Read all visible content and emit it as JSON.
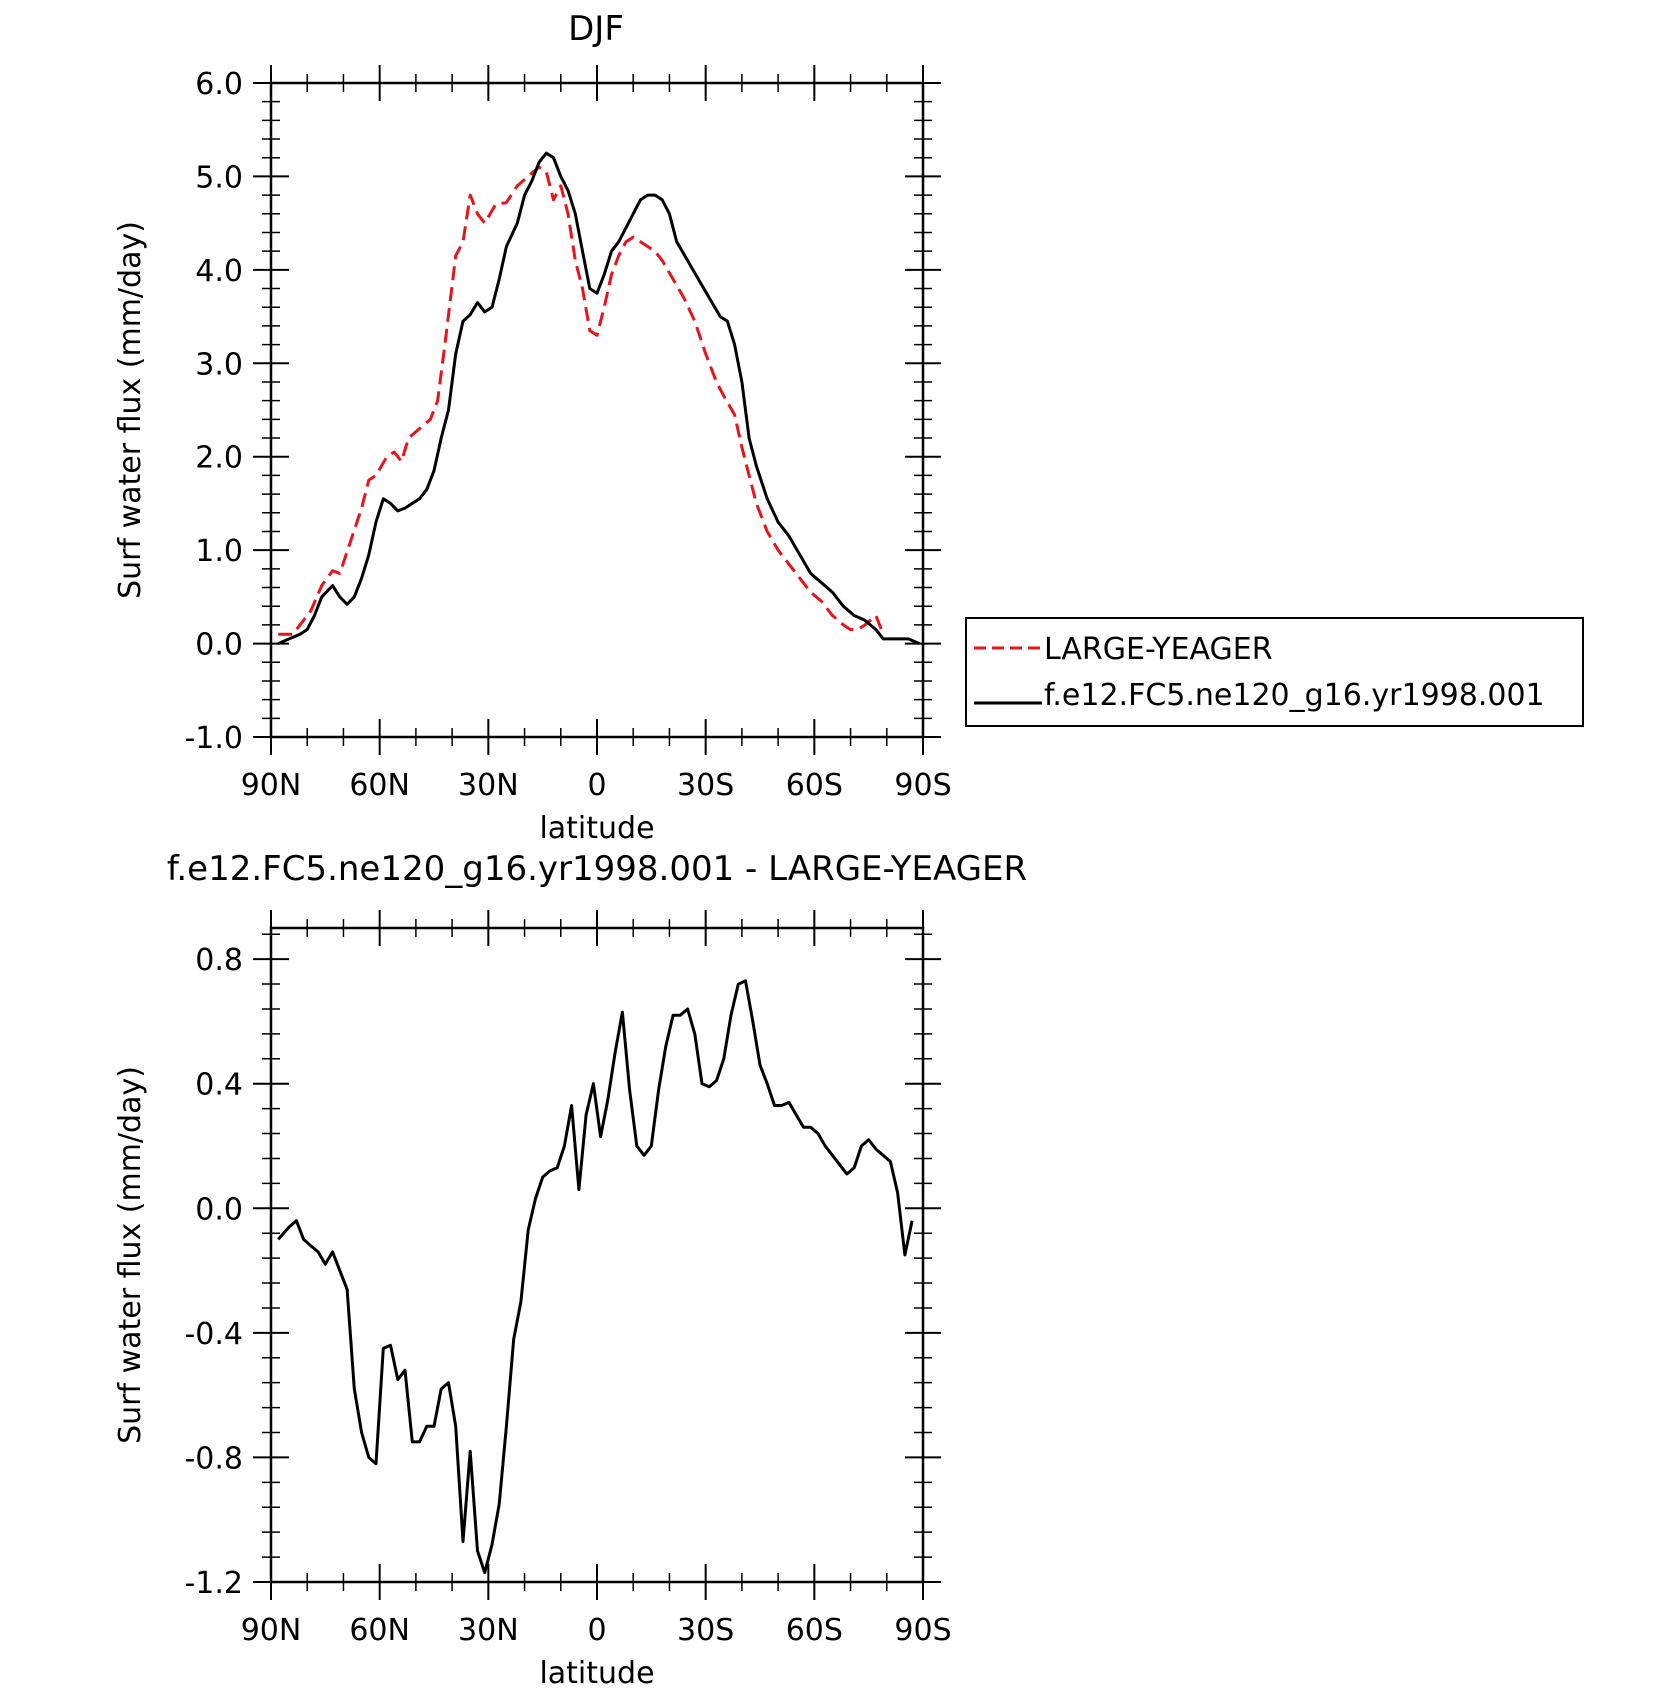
{
  "colors": {
    "obs": "#e8141c",
    "model": "#000000",
    "axis": "#000000"
  },
  "chart_data": [
    {
      "type": "line",
      "title": "DJF",
      "xlabel": "latitude",
      "ylabel": "Surf water flux (mm/day)",
      "xlim": [
        -90,
        90
      ],
      "ylim": [
        -1.0,
        6.0
      ],
      "x_ticks": [
        -90,
        -60,
        -30,
        0,
        30,
        60,
        90
      ],
      "x_tick_labels": [
        "90N",
        "60N",
        "30N",
        "0",
        "30S",
        "60S",
        "90S"
      ],
      "y_ticks": [
        -1,
        0,
        1,
        2,
        3,
        4,
        5,
        6
      ],
      "y_tick_labels": [
        "-1.0",
        "0.0",
        "1.0",
        "2.0",
        "3.0",
        "4.0",
        "5.0",
        "6.0"
      ],
      "legend": {
        "placement": "right",
        "entries": [
          {
            "label": "LARGE-YEAGER",
            "style": "dashed",
            "color": "#e8141c"
          },
          {
            "label": "f.e12.FC5.ne120_g16.yr1998.001",
            "style": "solid",
            "color": "#000000"
          }
        ]
      },
      "series": [
        {
          "name": "LARGE-YEAGER",
          "style": "dashed",
          "color": "#e8141c",
          "points": [
            [
              -88,
              0.1
            ],
            [
              -84,
              0.1
            ],
            [
              -82,
              0.2
            ],
            [
              -79,
              0.35
            ],
            [
              -76,
              0.62
            ],
            [
              -73,
              0.78
            ],
            [
              -71,
              0.75
            ],
            [
              -68,
              1.1
            ],
            [
              -65,
              1.45
            ],
            [
              -63,
              1.75
            ],
            [
              -61,
              1.8
            ],
            [
              -58,
              2.0
            ],
            [
              -56,
              2.05
            ],
            [
              -54,
              1.95
            ],
            [
              -52,
              2.2
            ],
            [
              -49,
              2.3
            ],
            [
              -46,
              2.4
            ],
            [
              -44,
              2.6
            ],
            [
              -42,
              3.2
            ],
            [
              -39,
              4.15
            ],
            [
              -37,
              4.3
            ],
            [
              -35,
              4.8
            ],
            [
              -33,
              4.6
            ],
            [
              -31,
              4.5
            ],
            [
              -28,
              4.7
            ],
            [
              -25,
              4.72
            ],
            [
              -22,
              4.9
            ],
            [
              -19,
              5.0
            ],
            [
              -16,
              5.1
            ],
            [
              -14,
              5.05
            ],
            [
              -12,
              4.75
            ],
            [
              -10,
              4.9
            ],
            [
              -8,
              4.6
            ],
            [
              -6,
              4.1
            ],
            [
              -4,
              3.8
            ],
            [
              -2,
              3.35
            ],
            [
              0,
              3.3
            ],
            [
              2,
              3.6
            ],
            [
              4,
              3.95
            ],
            [
              6,
              4.15
            ],
            [
              8,
              4.3
            ],
            [
              10,
              4.35
            ],
            [
              12,
              4.3
            ],
            [
              14,
              4.25
            ],
            [
              16,
              4.2
            ],
            [
              18,
              4.1
            ],
            [
              21,
              3.9
            ],
            [
              24,
              3.7
            ],
            [
              27,
              3.45
            ],
            [
              30,
              3.1
            ],
            [
              33,
              2.8
            ],
            [
              35,
              2.65
            ],
            [
              38,
              2.45
            ],
            [
              40,
              2.1
            ],
            [
              42,
              1.8
            ],
            [
              44,
              1.5
            ],
            [
              47,
              1.2
            ],
            [
              50,
              1.0
            ],
            [
              53,
              0.85
            ],
            [
              56,
              0.7
            ],
            [
              59,
              0.55
            ],
            [
              62,
              0.45
            ],
            [
              65,
              0.3
            ],
            [
              68,
              0.2
            ],
            [
              70,
              0.15
            ],
            [
              72,
              0.15
            ],
            [
              74,
              0.2
            ],
            [
              77,
              0.3
            ],
            [
              79,
              0.1
            ]
          ]
        },
        {
          "name": "f.e12.FC5.ne120_g16.yr1998.001",
          "style": "solid",
          "color": "#000000",
          "points": [
            [
              -88,
              0.0
            ],
            [
              -85,
              0.05
            ],
            [
              -82,
              0.1
            ],
            [
              -80,
              0.15
            ],
            [
              -78,
              0.3
            ],
            [
              -76,
              0.5
            ],
            [
              -73,
              0.62
            ],
            [
              -71,
              0.5
            ],
            [
              -69,
              0.42
            ],
            [
              -67,
              0.5
            ],
            [
              -65,
              0.7
            ],
            [
              -63,
              0.95
            ],
            [
              -61,
              1.3
            ],
            [
              -59,
              1.55
            ],
            [
              -57,
              1.5
            ],
            [
              -55,
              1.42
            ],
            [
              -53,
              1.45
            ],
            [
              -51,
              1.5
            ],
            [
              -49,
              1.55
            ],
            [
              -47,
              1.65
            ],
            [
              -45,
              1.85
            ],
            [
              -43,
              2.2
            ],
            [
              -41,
              2.5
            ],
            [
              -39,
              3.1
            ],
            [
              -37,
              3.45
            ],
            [
              -35,
              3.52
            ],
            [
              -33,
              3.65
            ],
            [
              -31,
              3.55
            ],
            [
              -29,
              3.6
            ],
            [
              -27,
              3.9
            ],
            [
              -25,
              4.25
            ],
            [
              -22,
              4.5
            ],
            [
              -20,
              4.8
            ],
            [
              -18,
              4.95
            ],
            [
              -16,
              5.15
            ],
            [
              -14,
              5.25
            ],
            [
              -12,
              5.2
            ],
            [
              -10,
              5.0
            ],
            [
              -8,
              4.85
            ],
            [
              -6,
              4.6
            ],
            [
              -4,
              4.2
            ],
            [
              -2,
              3.8
            ],
            [
              0,
              3.75
            ],
            [
              2,
              3.95
            ],
            [
              4,
              4.2
            ],
            [
              6,
              4.3
            ],
            [
              8,
              4.45
            ],
            [
              10,
              4.6
            ],
            [
              12,
              4.75
            ],
            [
              14,
              4.8
            ],
            [
              16,
              4.8
            ],
            [
              18,
              4.75
            ],
            [
              20,
              4.6
            ],
            [
              22,
              4.3
            ],
            [
              25,
              4.1
            ],
            [
              28,
              3.9
            ],
            [
              31,
              3.7
            ],
            [
              34,
              3.5
            ],
            [
              36,
              3.45
            ],
            [
              38,
              3.2
            ],
            [
              40,
              2.8
            ],
            [
              42,
              2.2
            ],
            [
              44,
              1.9
            ],
            [
              47,
              1.55
            ],
            [
              50,
              1.3
            ],
            [
              53,
              1.15
            ],
            [
              56,
              0.95
            ],
            [
              59,
              0.75
            ],
            [
              62,
              0.65
            ],
            [
              65,
              0.55
            ],
            [
              68,
              0.4
            ],
            [
              71,
              0.3
            ],
            [
              74,
              0.25
            ],
            [
              77,
              0.15
            ],
            [
              79,
              0.05
            ],
            [
              82,
              0.05
            ],
            [
              86,
              0.05
            ],
            [
              89,
              0.0
            ]
          ]
        }
      ]
    },
    {
      "type": "line",
      "title": "f.e12.FC5.ne120_g16.yr1998.001 - LARGE-YEAGER",
      "xlabel": "latitude",
      "ylabel": "Surf water flux (mm/day)",
      "xlim": [
        -90,
        90
      ],
      "ylim": [
        -1.2,
        0.9
      ],
      "x_ticks": [
        -90,
        -60,
        -30,
        0,
        30,
        60,
        90
      ],
      "x_tick_labels": [
        "90N",
        "60N",
        "30N",
        "0",
        "30S",
        "60S",
        "90S"
      ],
      "y_ticks": [
        -1.2,
        -0.8,
        -0.4,
        0.0,
        0.4,
        0.8
      ],
      "y_tick_labels": [
        "-1.2",
        "-0.8",
        "-0.4",
        "0.0",
        "0.4",
        "0.8"
      ],
      "series": [
        {
          "style": "solid",
          "color": "#000000",
          "points": [
            [
              -88,
              -0.1
            ],
            [
              -85,
              -0.06
            ],
            [
              -83,
              -0.04
            ],
            [
              -81,
              -0.1
            ],
            [
              -79,
              -0.12
            ],
            [
              -77,
              -0.14
            ],
            [
              -75,
              -0.18
            ],
            [
              -73,
              -0.14
            ],
            [
              -71,
              -0.2
            ],
            [
              -69,
              -0.26
            ],
            [
              -67,
              -0.58
            ],
            [
              -65,
              -0.72
            ],
            [
              -63,
              -0.8
            ],
            [
              -61,
              -0.82
            ],
            [
              -59,
              -0.45
            ],
            [
              -57,
              -0.44
            ],
            [
              -55,
              -0.55
            ],
            [
              -53,
              -0.52
            ],
            [
              -51,
              -0.75
            ],
            [
              -49,
              -0.75
            ],
            [
              -47,
              -0.7
            ],
            [
              -45,
              -0.7
            ],
            [
              -43,
              -0.58
            ],
            [
              -41,
              -0.56
            ],
            [
              -39,
              -0.7
            ],
            [
              -37,
              -1.07
            ],
            [
              -35,
              -0.78
            ],
            [
              -33,
              -1.1
            ],
            [
              -31,
              -1.17
            ],
            [
              -29,
              -1.08
            ],
            [
              -27,
              -0.95
            ],
            [
              -25,
              -0.7
            ],
            [
              -23,
              -0.42
            ],
            [
              -21,
              -0.3
            ],
            [
              -19,
              -0.07
            ],
            [
              -17,
              0.03
            ],
            [
              -15,
              0.1
            ],
            [
              -13,
              0.12
            ],
            [
              -11,
              0.13
            ],
            [
              -9,
              0.2
            ],
            [
              -7,
              0.33
            ],
            [
              -5,
              0.06
            ],
            [
              -3,
              0.3
            ],
            [
              -1,
              0.4
            ],
            [
              1,
              0.23
            ],
            [
              3,
              0.35
            ],
            [
              5,
              0.5
            ],
            [
              7,
              0.63
            ],
            [
              9,
              0.38
            ],
            [
              11,
              0.2
            ],
            [
              13,
              0.17
            ],
            [
              15,
              0.2
            ],
            [
              17,
              0.38
            ],
            [
              19,
              0.52
            ],
            [
              21,
              0.62
            ],
            [
              23,
              0.62
            ],
            [
              25,
              0.64
            ],
            [
              27,
              0.56
            ],
            [
              29,
              0.4
            ],
            [
              31,
              0.39
            ],
            [
              33,
              0.41
            ],
            [
              35,
              0.48
            ],
            [
              37,
              0.62
            ],
            [
              39,
              0.72
            ],
            [
              41,
              0.73
            ],
            [
              43,
              0.6
            ],
            [
              45,
              0.46
            ],
            [
              47,
              0.4
            ],
            [
              49,
              0.33
            ],
            [
              51,
              0.33
            ],
            [
              53,
              0.34
            ],
            [
              55,
              0.3
            ],
            [
              57,
              0.26
            ],
            [
              59,
              0.26
            ],
            [
              61,
              0.24
            ],
            [
              63,
              0.2
            ],
            [
              65,
              0.17
            ],
            [
              67,
              0.14
            ],
            [
              69,
              0.11
            ],
            [
              71,
              0.13
            ],
            [
              73,
              0.2
            ],
            [
              75,
              0.22
            ],
            [
              77,
              0.19
            ],
            [
              79,
              0.17
            ],
            [
              81,
              0.15
            ],
            [
              83,
              0.05
            ],
            [
              85,
              -0.15
            ],
            [
              87,
              -0.04
            ]
          ]
        }
      ]
    }
  ]
}
